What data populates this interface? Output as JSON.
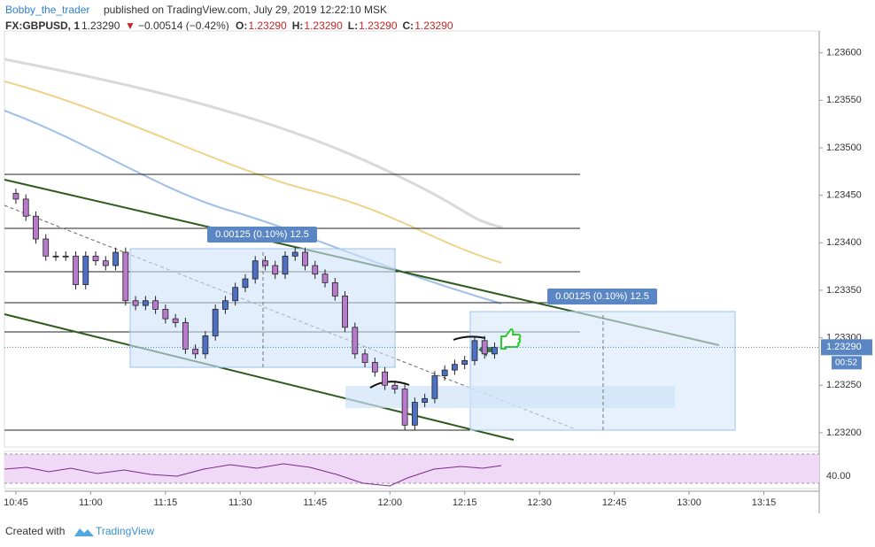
{
  "header": {
    "author": "Bobby_the_trader",
    "published": "published on TradingView.com, July 29, 2019 12:22:10 MSK",
    "symbol": "FX:GBPUSD, 1",
    "price": "1.23290",
    "arrow": "▼",
    "change": "−0.00514 (−0.42%)",
    "ohlc": [
      {
        "key": "O:",
        "value": "1.23290"
      },
      {
        "key": "H:",
        "value": "1.23290"
      },
      {
        "key": "L:",
        "value": "1.23290"
      },
      {
        "key": "C:",
        "value": "1.23290"
      }
    ]
  },
  "chart_data": {
    "type": "candlestick",
    "up_color": "#4d6fc4",
    "down_color": "#b87bcc",
    "x": [
      0,
      2,
      4,
      6,
      8,
      10,
      12,
      14,
      16,
      18,
      20,
      22,
      24,
      26,
      28,
      30,
      32,
      34,
      36,
      38,
      40,
      42,
      44,
      46,
      48,
      50,
      52,
      54,
      56,
      58,
      60,
      62,
      64,
      66,
      68,
      70,
      72,
      74,
      76,
      78,
      80,
      82,
      84,
      86,
      88,
      90,
      92,
      94,
      96
    ],
    "open": [
      1.23452,
      1.23446,
      1.23428,
      1.23404,
      1.23386,
      1.23386,
      1.23386,
      1.23356,
      1.23386,
      1.23381,
      1.23376,
      1.2339,
      1.23339,
      1.23334,
      1.23339,
      1.2333,
      1.2332,
      1.23316,
      1.23288,
      1.23283,
      1.23302,
      1.2333,
      1.23339,
      1.23353,
      1.23362,
      1.23381,
      1.23376,
      1.23367,
      1.23386,
      1.2339,
      1.23376,
      1.23367,
      1.23358,
      1.23344,
      1.23311,
      1.23283,
      1.23274,
      1.23264,
      1.2325,
      1.23246,
      1.23208,
      1.23232,
      1.23236,
      1.2326,
      1.23266,
      1.23272,
      1.23276,
      1.23297,
      1.23283
    ],
    "high": [
      1.23457,
      1.23451,
      1.23433,
      1.23409,
      1.23391,
      1.23391,
      1.23391,
      1.23391,
      1.23391,
      1.23386,
      1.23395,
      1.23395,
      1.23344,
      1.23344,
      1.23344,
      1.23335,
      1.23325,
      1.23321,
      1.23293,
      1.23307,
      1.23335,
      1.23344,
      1.23358,
      1.23367,
      1.23386,
      1.23386,
      1.23381,
      1.23391,
      1.23395,
      1.23395,
      1.23381,
      1.23372,
      1.23363,
      1.23349,
      1.23316,
      1.23288,
      1.23279,
      1.23269,
      1.23255,
      1.23251,
      1.23237,
      1.23241,
      1.23265,
      1.23271,
      1.23277,
      1.23281,
      1.23302,
      1.23302,
      1.23295
    ],
    "low": [
      1.23441,
      1.23423,
      1.23399,
      1.23381,
      1.23381,
      1.23381,
      1.23351,
      1.23351,
      1.23376,
      1.23371,
      1.23371,
      1.23334,
      1.23329,
      1.23329,
      1.23325,
      1.23315,
      1.23311,
      1.23283,
      1.23278,
      1.23278,
      1.23297,
      1.23325,
      1.23334,
      1.23348,
      1.23357,
      1.23371,
      1.23362,
      1.23362,
      1.23381,
      1.23371,
      1.23362,
      1.23353,
      1.23339,
      1.23306,
      1.23278,
      1.23269,
      1.23259,
      1.23245,
      1.23241,
      1.23203,
      1.23203,
      1.23227,
      1.23231,
      1.23255,
      1.23261,
      1.23267,
      1.23271,
      1.23278,
      1.23278
    ],
    "close": [
      1.23446,
      1.23428,
      1.23404,
      1.23386,
      1.23386,
      1.23386,
      1.23356,
      1.23386,
      1.23381,
      1.23376,
      1.2339,
      1.23339,
      1.23334,
      1.23339,
      1.2333,
      1.2332,
      1.23316,
      1.23288,
      1.23283,
      1.23302,
      1.2333,
      1.23339,
      1.23353,
      1.23362,
      1.23381,
      1.23376,
      1.23367,
      1.23386,
      1.2339,
      1.23376,
      1.23367,
      1.23358,
      1.23344,
      1.23311,
      1.23283,
      1.23274,
      1.23264,
      1.2325,
      1.23246,
      1.23208,
      1.23232,
      1.23236,
      1.2326,
      1.23266,
      1.23272,
      1.23276,
      1.23297,
      1.23283,
      1.2329
    ],
    "xlim": [
      -2.3,
      161.1
    ],
    "xticks": [
      {
        "value": 0,
        "label": "10:45"
      },
      {
        "value": 15,
        "label": "11:00"
      },
      {
        "value": 30,
        "label": "11:15"
      },
      {
        "value": 45,
        "label": "11:30"
      },
      {
        "value": 60,
        "label": "11:45"
      },
      {
        "value": 75,
        "label": "12:00"
      },
      {
        "value": 90,
        "label": "12:15"
      },
      {
        "value": 105,
        "label": "12:30"
      },
      {
        "value": 120,
        "label": "12:45"
      },
      {
        "value": 135,
        "label": "13:00"
      },
      {
        "value": 150,
        "label": "13:15"
      }
    ],
    "ylim": [
      1.23185,
      1.23623
    ],
    "yticks": [
      {
        "value": 1.232,
        "label": "1.23200"
      },
      {
        "value": 1.2325,
        "label": "1.23250"
      },
      {
        "value": 1.233,
        "label": "1.23300"
      },
      {
        "value": 1.2335,
        "label": "1.23350"
      },
      {
        "value": 1.234,
        "label": "1.23400"
      },
      {
        "value": 1.2345,
        "label": "1.23450"
      },
      {
        "value": 1.235,
        "label": "1.23500"
      },
      {
        "value": 1.2355,
        "label": "1.23550"
      },
      {
        "value": 1.236,
        "label": "1.23600"
      }
    ],
    "last_price": {
      "value": 1.2329,
      "label": "1.23290"
    },
    "countdown": "00:52",
    "measures": [
      "0.00125 (0.10%) 12.5",
      "0.00125 (0.10%) 12.5"
    ],
    "rsi_tick": "40.00"
  },
  "footer": {
    "created": "Created with",
    "brand": "TradingView"
  }
}
